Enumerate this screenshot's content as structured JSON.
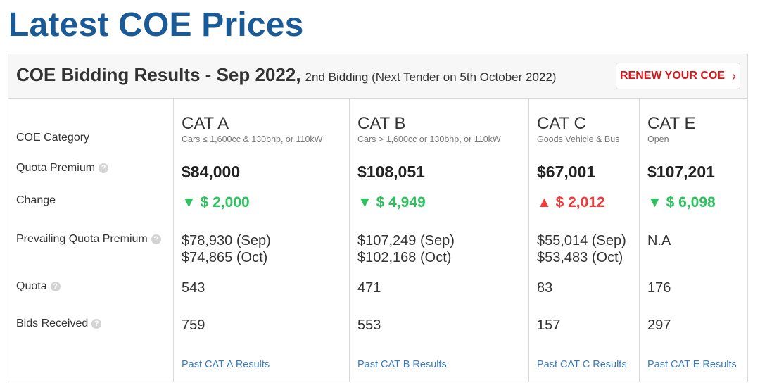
{
  "page_title": "Latest COE Prices",
  "header": {
    "title": "COE Bidding Results - Sep 2022,",
    "subtitle": "2nd Bidding (Next Tender on 5th October 2022)",
    "renew_label": "RENEW YOUR COE",
    "renew_chevron": "›"
  },
  "row_labels": {
    "category": "COE Category",
    "quota_premium": "Quota Premium",
    "change": "Change",
    "prevailing": "Prevailing Quota Premium",
    "quota": "Quota",
    "bids": "Bids Received"
  },
  "help_glyph": "?",
  "colors": {
    "title": "#1a5a96",
    "down": "#2ec25e",
    "up": "#ee3a3a",
    "link": "#3a7bbf",
    "renew": "#d7151a"
  },
  "categories": [
    {
      "name": "CAT A",
      "desc": "Cars ≤ 1,600cc & 130bhp, or 110kW",
      "premium": "$84,000",
      "change_dir": "down",
      "change": "▼ $ 2,000",
      "pqp_sep": "$78,930 (Sep)",
      "pqp_oct": "$74,865 (Oct)",
      "quota": "543",
      "bids": "759",
      "link": "Past CAT A Results"
    },
    {
      "name": "CAT B",
      "desc": "Cars > 1,600cc or 130bhp, or 110kW",
      "premium": "$108,051",
      "change_dir": "down",
      "change": "▼ $ 4,949",
      "pqp_sep": "$107,249 (Sep)",
      "pqp_oct": "$102,168 (Oct)",
      "quota": "471",
      "bids": "553",
      "link": "Past CAT B Results"
    },
    {
      "name": "CAT C",
      "desc": "Goods Vehicle & Bus",
      "premium": "$67,001",
      "change_dir": "up",
      "change": "▲ $ 2,012",
      "pqp_sep": "$55,014 (Sep)",
      "pqp_oct": "$53,483 (Oct)",
      "quota": "83",
      "bids": "157",
      "link": "Past CAT C Results"
    },
    {
      "name": "CAT E",
      "desc": "Open",
      "premium": "$107,201",
      "change_dir": "down",
      "change": "▼ $ 6,098",
      "pqp_sep": "N.A",
      "pqp_oct": "",
      "quota": "176",
      "bids": "297",
      "link": "Past CAT E Results"
    }
  ]
}
